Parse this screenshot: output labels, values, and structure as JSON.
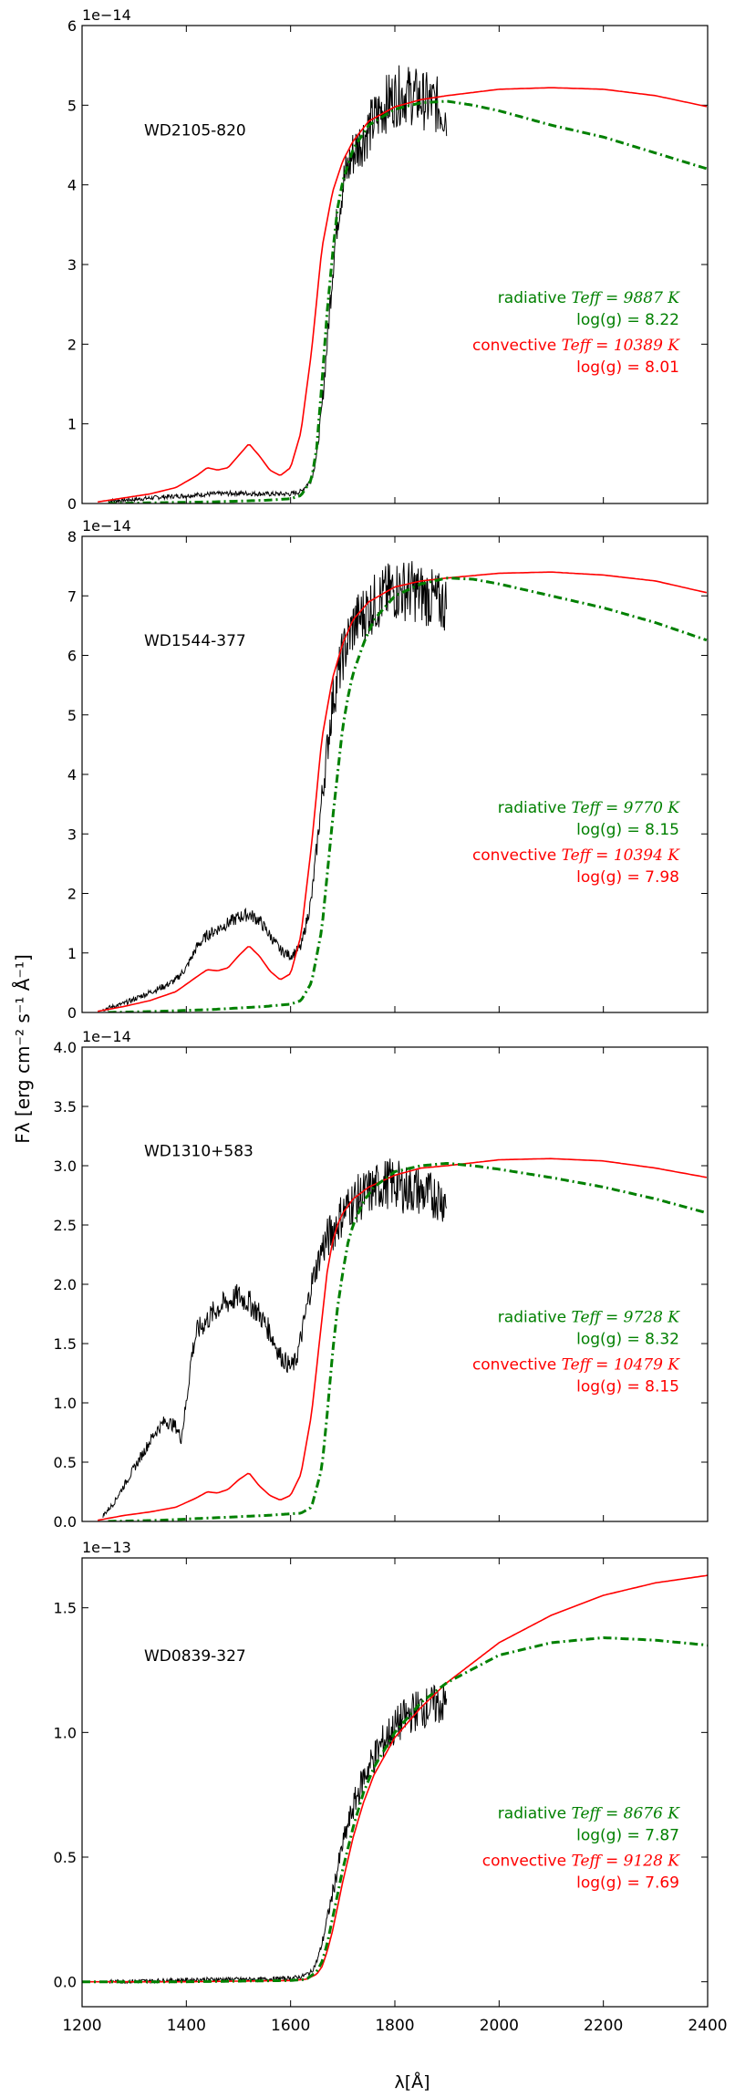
{
  "figure": {
    "ylabel": "Fλ [erg cm⁻² s⁻¹ Å⁻¹]",
    "xlabel": "λ[Å]"
  },
  "colors": {
    "observed": "#000000",
    "radiative": "#008000",
    "convective": "#ff0000"
  },
  "chart_data": [
    {
      "type": "line",
      "title": "WD2105-820",
      "offset_label": "1e−14",
      "xlim": [
        1200,
        2400
      ],
      "ylim": [
        0,
        6
      ],
      "yticks": [
        0,
        1,
        2,
        3,
        4,
        5,
        6
      ],
      "ytick_labels": [
        "0",
        "1",
        "2",
        "3",
        "4",
        "5",
        "6"
      ],
      "legend_position": "center-right",
      "legend": {
        "radiative": {
          "label": "radiative",
          "teff": "Teff = 9887 K",
          "logg": "log(g) = 8.22"
        },
        "convective": {
          "label": "convective",
          "teff": "Teff = 10389 K",
          "logg": "log(g) = 8.01"
        }
      },
      "series": [
        {
          "name": "observed",
          "x": [
            1250,
            1300,
            1350,
            1400,
            1450,
            1500,
            1550,
            1600,
            1620,
            1640,
            1650,
            1660,
            1670,
            1680,
            1690,
            1700,
            1720,
            1740,
            1760,
            1780,
            1800,
            1820,
            1840,
            1860,
            1880,
            1900
          ],
          "y": [
            0.03,
            0.05,
            0.08,
            0.1,
            0.12,
            0.13,
            0.12,
            0.12,
            0.15,
            0.3,
            0.6,
            1.2,
            2.0,
            2.9,
            3.6,
            4.0,
            4.4,
            4.6,
            4.8,
            5.0,
            5.1,
            5.15,
            5.1,
            5.05,
            5.0,
            4.9
          ]
        },
        {
          "name": "convective",
          "x": [
            1230,
            1280,
            1330,
            1380,
            1420,
            1440,
            1460,
            1480,
            1500,
            1520,
            1540,
            1560,
            1580,
            1600,
            1620,
            1640,
            1660,
            1680,
            1700,
            1720,
            1750,
            1800,
            1850,
            1900,
            2000,
            2100,
            2200,
            2300,
            2400
          ],
          "y": [
            0.02,
            0.07,
            0.12,
            0.2,
            0.35,
            0.45,
            0.42,
            0.45,
            0.6,
            0.75,
            0.6,
            0.42,
            0.35,
            0.45,
            0.9,
            1.9,
            3.2,
            3.9,
            4.3,
            4.55,
            4.8,
            4.98,
            5.07,
            5.12,
            5.2,
            5.22,
            5.2,
            5.12,
            4.98
          ]
        },
        {
          "name": "radiative",
          "x": [
            1250,
            1350,
            1450,
            1550,
            1600,
            1620,
            1640,
            1650,
            1660,
            1670,
            1680,
            1690,
            1700,
            1720,
            1750,
            1800,
            1850,
            1900,
            1950,
            2000,
            2100,
            2200,
            2300,
            2400
          ],
          "y": [
            0.0,
            0.01,
            0.02,
            0.04,
            0.06,
            0.1,
            0.3,
            0.7,
            1.5,
            2.4,
            3.1,
            3.7,
            4.05,
            4.45,
            4.75,
            4.95,
            5.03,
            5.05,
            5.0,
            4.93,
            4.75,
            4.6,
            4.4,
            4.2
          ]
        }
      ]
    },
    {
      "type": "line",
      "title": "WD1544-377",
      "offset_label": "1e−14",
      "xlim": [
        1200,
        2400
      ],
      "ylim": [
        0,
        8
      ],
      "yticks": [
        0,
        1,
        2,
        3,
        4,
        5,
        6,
        7,
        8
      ],
      "ytick_labels": [
        "0",
        "1",
        "2",
        "3",
        "4",
        "5",
        "6",
        "7",
        "8"
      ],
      "legend_position": "center-right",
      "legend": {
        "radiative": {
          "label": "radiative",
          "teff": "Teff = 9770 K",
          "logg": "log(g) = 8.15"
        },
        "convective": {
          "label": "convective",
          "teff": "Teff = 10394 K",
          "logg": "log(g) = 7.98"
        }
      },
      "series": [
        {
          "name": "observed",
          "x": [
            1240,
            1280,
            1320,
            1360,
            1380,
            1400,
            1420,
            1440,
            1460,
            1480,
            1500,
            1520,
            1540,
            1560,
            1580,
            1600,
            1620,
            1640,
            1660,
            1680,
            1700,
            1720,
            1750,
            1780,
            1800,
            1830,
            1860,
            1880,
            1900
          ],
          "y": [
            0.05,
            0.15,
            0.3,
            0.45,
            0.55,
            0.75,
            1.1,
            1.3,
            1.4,
            1.5,
            1.6,
            1.65,
            1.55,
            1.3,
            1.05,
            0.95,
            1.1,
            1.9,
            3.6,
            5.2,
            6.0,
            6.5,
            6.8,
            7.0,
            7.1,
            7.1,
            7.0,
            6.9,
            6.85
          ]
        },
        {
          "name": "convective",
          "x": [
            1230,
            1280,
            1330,
            1380,
            1420,
            1440,
            1460,
            1480,
            1500,
            1520,
            1540,
            1560,
            1580,
            1600,
            1620,
            1640,
            1660,
            1680,
            1700,
            1720,
            1750,
            1800,
            1850,
            1900,
            2000,
            2100,
            2200,
            2300,
            2400
          ],
          "y": [
            0.02,
            0.1,
            0.2,
            0.35,
            0.6,
            0.72,
            0.7,
            0.75,
            0.95,
            1.12,
            0.95,
            0.7,
            0.55,
            0.65,
            1.3,
            2.8,
            4.6,
            5.6,
            6.2,
            6.6,
            6.9,
            7.15,
            7.25,
            7.3,
            7.38,
            7.4,
            7.35,
            7.25,
            7.05
          ]
        },
        {
          "name": "radiative",
          "x": [
            1250,
            1350,
            1450,
            1550,
            1600,
            1620,
            1640,
            1660,
            1670,
            1680,
            1690,
            1700,
            1710,
            1720,
            1740,
            1760,
            1800,
            1850,
            1900,
            1950,
            2000,
            2100,
            2200,
            2300,
            2400
          ],
          "y": [
            0.0,
            0.02,
            0.05,
            0.1,
            0.14,
            0.2,
            0.5,
            1.4,
            2.3,
            3.2,
            4.0,
            4.8,
            5.3,
            5.7,
            6.2,
            6.6,
            7.0,
            7.2,
            7.3,
            7.28,
            7.2,
            7.0,
            6.8,
            6.55,
            6.25
          ]
        }
      ]
    },
    {
      "type": "line",
      "title": "WD1310+583",
      "offset_label": "1e−14",
      "xlim": [
        1200,
        2400
      ],
      "ylim": [
        0,
        4
      ],
      "yticks": [
        0,
        0.5,
        1,
        1.5,
        2,
        2.5,
        3,
        3.5,
        4
      ],
      "ytick_labels": [
        "0.0",
        "0.5",
        "1.0",
        "1.5",
        "2.0",
        "2.5",
        "3.0",
        "3.5",
        "4.0"
      ],
      "legend_position": "center-right",
      "legend": {
        "radiative": {
          "label": "radiative",
          "teff": "Teff = 9728 K",
          "logg": "log(g) = 8.32"
        },
        "convective": {
          "label": "convective",
          "teff": "Teff = 10479 K",
          "logg": "log(g) = 8.15"
        }
      },
      "series": [
        {
          "name": "observed",
          "x": [
            1240,
            1260,
            1280,
            1300,
            1320,
            1340,
            1360,
            1380,
            1390,
            1400,
            1410,
            1420,
            1440,
            1460,
            1480,
            1500,
            1520,
            1540,
            1560,
            1580,
            1600,
            1610,
            1620,
            1640,
            1660,
            1680,
            1700,
            1720,
            1740,
            1760,
            1780,
            1800,
            1820,
            1840,
            1860,
            1880,
            1900
          ],
          "y": [
            0.05,
            0.15,
            0.3,
            0.45,
            0.6,
            0.75,
            0.85,
            0.8,
            0.7,
            1.0,
            1.4,
            1.6,
            1.7,
            1.8,
            1.85,
            1.9,
            1.85,
            1.75,
            1.6,
            1.4,
            1.3,
            1.35,
            1.55,
            2.0,
            2.3,
            2.45,
            2.6,
            2.7,
            2.75,
            2.8,
            2.85,
            2.85,
            2.8,
            2.8,
            2.75,
            2.75,
            2.7
          ]
        },
        {
          "name": "convective",
          "x": [
            1230,
            1280,
            1330,
            1380,
            1420,
            1440,
            1460,
            1480,
            1500,
            1520,
            1540,
            1560,
            1580,
            1600,
            1620,
            1640,
            1660,
            1670,
            1680,
            1690,
            1700,
            1720,
            1750,
            1800,
            1850,
            1900,
            2000,
            2100,
            2200,
            2300,
            2400
          ],
          "y": [
            0.01,
            0.05,
            0.08,
            0.12,
            0.2,
            0.25,
            0.24,
            0.27,
            0.35,
            0.41,
            0.3,
            0.22,
            0.18,
            0.22,
            0.4,
            0.9,
            1.7,
            2.1,
            2.35,
            2.5,
            2.6,
            2.72,
            2.82,
            2.92,
            2.98,
            3.0,
            3.05,
            3.06,
            3.04,
            2.98,
            2.9
          ]
        },
        {
          "name": "radiative",
          "x": [
            1250,
            1350,
            1450,
            1550,
            1620,
            1640,
            1660,
            1670,
            1680,
            1690,
            1700,
            1710,
            1720,
            1740,
            1760,
            1800,
            1850,
            1900,
            1950,
            2000,
            2100,
            2200,
            2300,
            2400
          ],
          "y": [
            0.0,
            0.01,
            0.03,
            0.05,
            0.07,
            0.12,
            0.45,
            0.9,
            1.4,
            1.8,
            2.1,
            2.35,
            2.5,
            2.7,
            2.82,
            2.95,
            3.0,
            3.02,
            3.0,
            2.97,
            2.9,
            2.82,
            2.72,
            2.6
          ]
        }
      ]
    },
    {
      "type": "line",
      "title": "WD0839-327",
      "offset_label": "1e−13",
      "xlim": [
        1200,
        2400
      ],
      "ylim": [
        -0.1,
        1.7
      ],
      "yticks": [
        0,
        0.5,
        1,
        1.5
      ],
      "ytick_labels": [
        "0.0",
        "0.5",
        "1.0",
        "1.5"
      ],
      "legend_position": "center-right",
      "legend": {
        "radiative": {
          "label": "radiative",
          "teff": "Teff = 8676 K",
          "logg": "log(g) = 7.87"
        },
        "convective": {
          "label": "convective",
          "teff": "Teff = 9128 K",
          "logg": "log(g) = 7.69"
        }
      },
      "series": [
        {
          "name": "observed",
          "x": [
            1250,
            1350,
            1450,
            1550,
            1600,
            1620,
            1640,
            1650,
            1660,
            1670,
            1680,
            1690,
            1700,
            1720,
            1740,
            1760,
            1780,
            1800,
            1820,
            1840,
            1860,
            1880,
            1900
          ],
          "y": [
            0.0,
            0.005,
            0.01,
            0.01,
            0.015,
            0.02,
            0.04,
            0.08,
            0.15,
            0.25,
            0.35,
            0.45,
            0.55,
            0.7,
            0.82,
            0.9,
            0.97,
            1.02,
            1.06,
            1.09,
            1.1,
            1.11,
            1.12
          ]
        },
        {
          "name": "convective",
          "x": [
            1200,
            1400,
            1600,
            1630,
            1650,
            1660,
            1670,
            1680,
            1690,
            1700,
            1720,
            1740,
            1760,
            1800,
            1850,
            1900,
            2000,
            2100,
            2200,
            2300,
            2400
          ],
          "y": [
            0.0,
            0.0,
            0.005,
            0.01,
            0.03,
            0.06,
            0.12,
            0.2,
            0.3,
            0.4,
            0.58,
            0.72,
            0.83,
            0.98,
            1.1,
            1.2,
            1.36,
            1.47,
            1.55,
            1.6,
            1.63
          ]
        },
        {
          "name": "radiative",
          "x": [
            1200,
            1400,
            1600,
            1630,
            1650,
            1660,
            1670,
            1680,
            1690,
            1700,
            1720,
            1740,
            1760,
            1800,
            1850,
            1900,
            2000,
            2100,
            2200,
            2300,
            2400
          ],
          "y": [
            0.0,
            0.0,
            0.005,
            0.01,
            0.04,
            0.08,
            0.15,
            0.25,
            0.35,
            0.45,
            0.62,
            0.76,
            0.86,
            1.0,
            1.12,
            1.2,
            1.31,
            1.36,
            1.38,
            1.37,
            1.35
          ]
        }
      ]
    }
  ],
  "x_axis": {
    "ticks": [
      1200,
      1400,
      1600,
      1800,
      2000,
      2200,
      2400
    ],
    "tick_labels": [
      "1200",
      "1400",
      "1600",
      "1800",
      "2000",
      "2200",
      "2400"
    ]
  }
}
